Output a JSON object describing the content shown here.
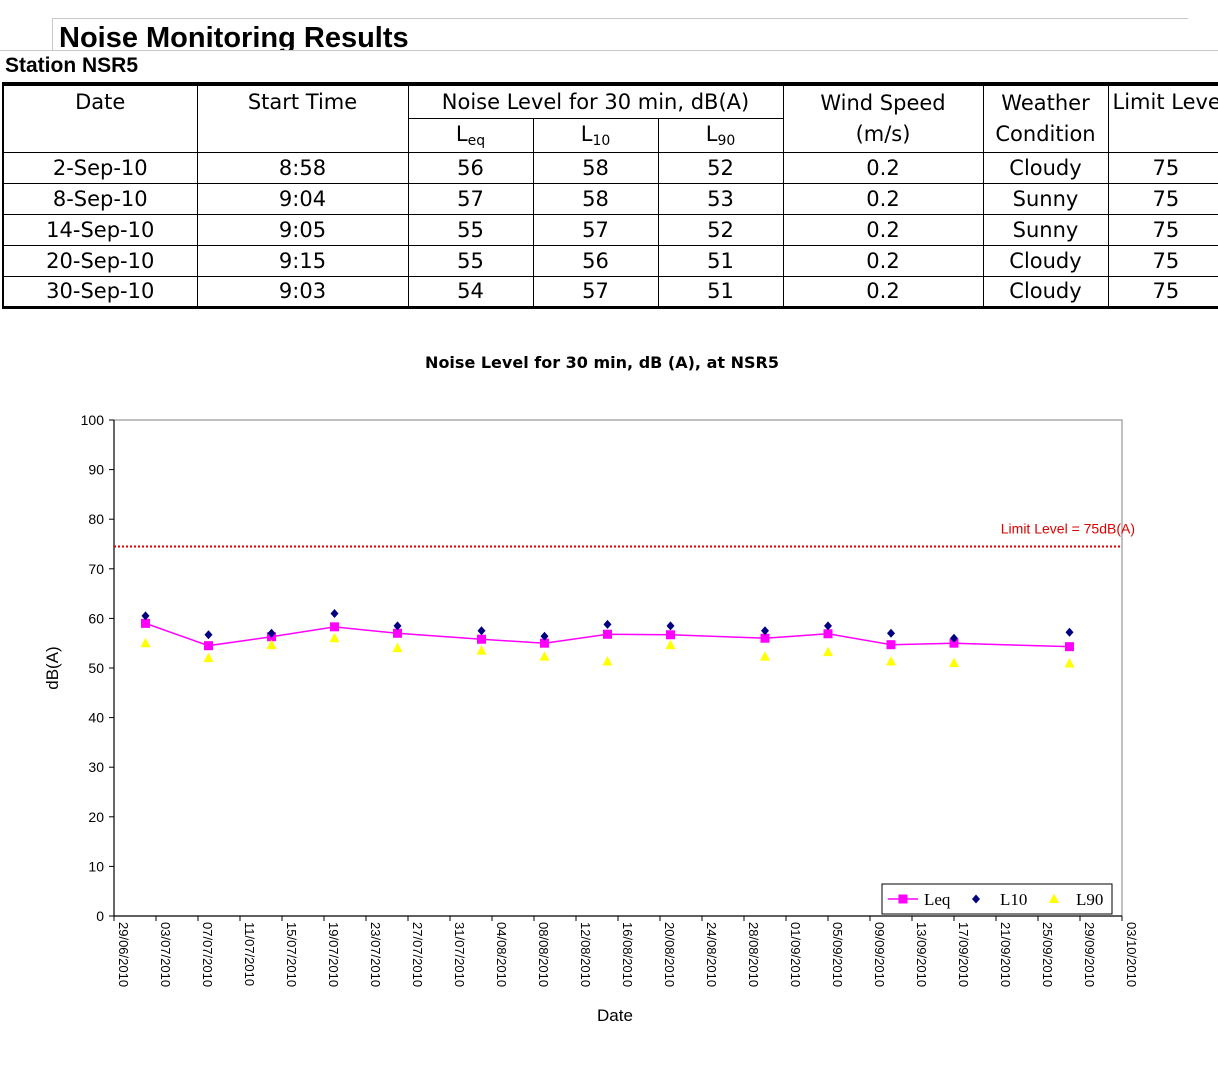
{
  "document": {
    "title": "Noise Monitoring Results",
    "station": "Station NSR5"
  },
  "table": {
    "headers": {
      "date": "Date",
      "start_time": "Start Time",
      "noise_group": "Noise Level for 30 min, dB(A)",
      "leq_main": "L",
      "leq_sub": "eq",
      "l10_main": "L",
      "l10_sub": "10",
      "l90_main": "L",
      "l90_sub": "90",
      "wind_line1": "Wind Speed",
      "wind_line2": "(m/s)",
      "weather_line1": "Weather",
      "weather_line2": "Condition",
      "limit": "Limit Leve"
    },
    "rows": [
      {
        "date": "2-Sep-10",
        "start_time": "8:58",
        "leq": "56",
        "l10": "58",
        "l90": "52",
        "wind": "0.2",
        "weather": "Cloudy",
        "limit": "75"
      },
      {
        "date": "8-Sep-10",
        "start_time": "9:04",
        "leq": "57",
        "l10": "58",
        "l90": "53",
        "wind": "0.2",
        "weather": "Sunny",
        "limit": "75"
      },
      {
        "date": "14-Sep-10",
        "start_time": "9:05",
        "leq": "55",
        "l10": "57",
        "l90": "52",
        "wind": "0.2",
        "weather": "Sunny",
        "limit": "75"
      },
      {
        "date": "20-Sep-10",
        "start_time": "9:15",
        "leq": "55",
        "l10": "56",
        "l90": "51",
        "wind": "0.2",
        "weather": "Cloudy",
        "limit": "75"
      },
      {
        "date": "30-Sep-10",
        "start_time": "9:03",
        "leq": "54",
        "l10": "57",
        "l90": "51",
        "wind": "0.2",
        "weather": "Cloudy",
        "limit": "75"
      }
    ]
  },
  "chart_data": {
    "type": "line",
    "title": "Noise Level for 30 min, dB (A), at NSR5",
    "xlabel": "Date",
    "ylabel": "dB(A)",
    "ylim": [
      0,
      100
    ],
    "yticks": [
      "0",
      "10",
      "20",
      "30",
      "40",
      "50",
      "60",
      "70",
      "80",
      "90",
      "100"
    ],
    "xlim": [
      "2010-06-29",
      "2010-10-03"
    ],
    "xticks": [
      "29/06/2010",
      "03/07/2010",
      "07/07/2010",
      "11/07/2010",
      "15/07/2010",
      "19/07/2010",
      "23/07/2010",
      "27/07/2010",
      "31/07/2010",
      "04/08/2010",
      "08/08/2010",
      "12/08/2010",
      "16/08/2010",
      "20/08/2010",
      "24/08/2010",
      "28/08/2010",
      "01/09/2010",
      "05/09/2010",
      "09/09/2010",
      "13/09/2010",
      "17/09/2010",
      "21/09/2010",
      "25/09/2010",
      "29/09/2010",
      "03/10/2010"
    ],
    "x": [
      "2010-07-02",
      "2010-07-08",
      "2010-07-14",
      "2010-07-20",
      "2010-07-26",
      "2010-08-03",
      "2010-08-09",
      "2010-08-15",
      "2010-08-21",
      "2010-08-30",
      "2010-09-05",
      "2010-09-11",
      "2010-09-17",
      "2010-09-28"
    ],
    "series": [
      {
        "name": "Leq",
        "color": "#ff00ff",
        "marker": "square",
        "line": true,
        "values": [
          59,
          54.5,
          56.3,
          58.3,
          57,
          55.8,
          55,
          56.8,
          56.7,
          56,
          56.9,
          54.7,
          55,
          54.3
        ]
      },
      {
        "name": "L10",
        "color": "#000080",
        "marker": "diamond",
        "line": false,
        "values": [
          60.5,
          56.7,
          57,
          61,
          58.5,
          57.5,
          56.4,
          58.8,
          58.5,
          57.5,
          58.5,
          57,
          56,
          57.2
        ]
      },
      {
        "name": "L90",
        "color": "#ffff00",
        "marker": "triangle",
        "line": false,
        "values": [
          55,
          52,
          54.6,
          56,
          54,
          53.5,
          52.3,
          51.3,
          54.6,
          52.3,
          53.2,
          51.3,
          51,
          50.9
        ]
      }
    ],
    "limit_line": {
      "value": 74.5,
      "label": "Limit Level = 75dB(A)",
      "color": "#dd0000"
    },
    "legend_position": "bottom-right",
    "grid": false
  }
}
